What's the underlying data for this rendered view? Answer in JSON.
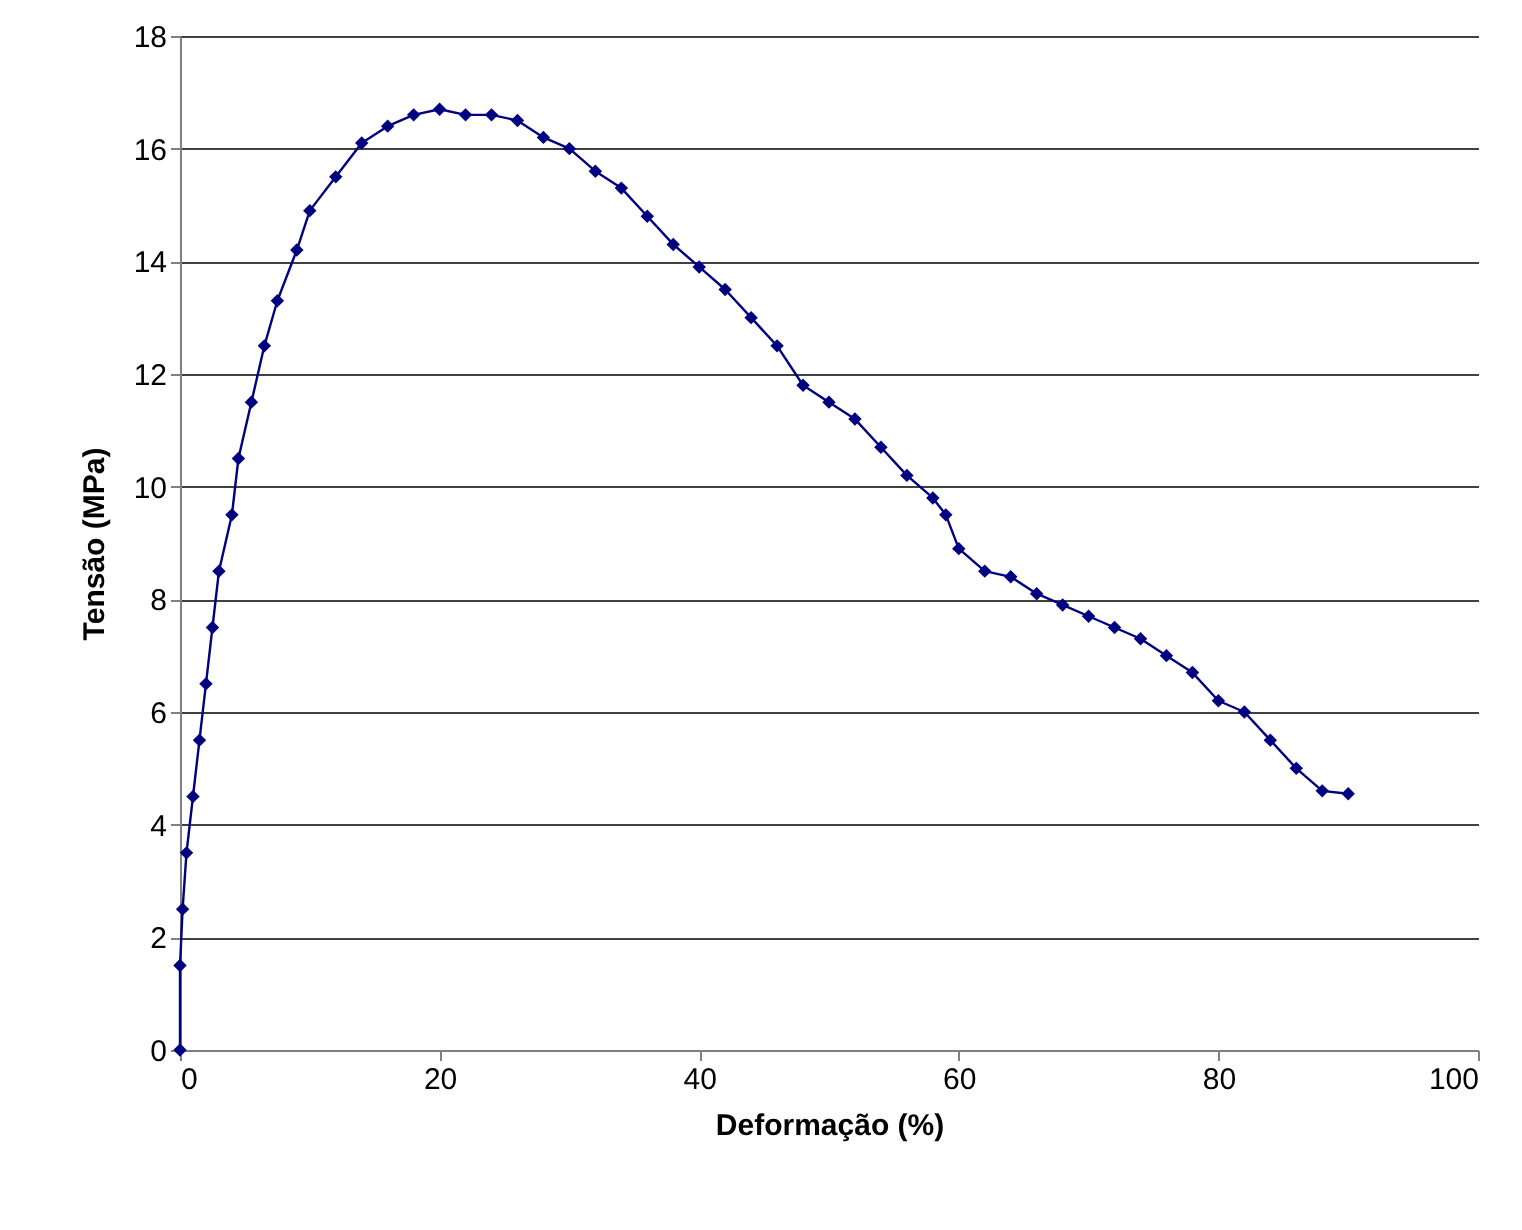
{
  "chart_data": {
    "type": "line",
    "xlabel": "Deformação (%)",
    "ylabel": "Tensão (MPa)",
    "xlim": [
      0,
      100
    ],
    "xticks": [
      0,
      20,
      40,
      60,
      80,
      100
    ],
    "ylim": [
      0,
      18
    ],
    "yticks": [
      0,
      2,
      4,
      6,
      8,
      10,
      12,
      14,
      16,
      18
    ],
    "grid": "y",
    "marker": "diamond",
    "line_style": "solid",
    "series": [
      {
        "color": "#000080",
        "x": [
          0,
          0,
          0.2,
          0.5,
          1,
          1.5,
          2,
          2.5,
          3,
          4,
          4.5,
          5.5,
          6.5,
          7.5,
          9,
          10,
          12,
          14,
          16,
          18,
          20,
          22,
          24,
          26,
          28,
          30,
          32,
          34,
          36,
          38,
          40,
          42,
          44,
          46,
          48,
          50,
          52,
          54,
          56,
          58,
          59,
          60,
          62,
          64,
          66,
          68,
          70,
          72,
          74,
          76,
          78,
          80,
          82,
          84,
          86,
          88,
          90
        ],
        "values": [
          0,
          1.5,
          2.5,
          3.5,
          4.5,
          5.5,
          6.5,
          7.5,
          8.5,
          9.5,
          10.5,
          11.5,
          12.5,
          13.3,
          14.2,
          14.9,
          15.5,
          16.1,
          16.4,
          16.6,
          16.7,
          16.6,
          16.6,
          16.5,
          16.2,
          16.0,
          15.6,
          15.3,
          14.8,
          14.3,
          13.9,
          13.5,
          13.0,
          12.5,
          11.8,
          11.5,
          11.2,
          10.7,
          10.2,
          9.8,
          9.5,
          8.9,
          8.5,
          8.4,
          8.1,
          7.9,
          7.7,
          7.5,
          7.3,
          7.0,
          6.7,
          6.2,
          6.0,
          5.5,
          5.0,
          4.6,
          4.55
        ]
      }
    ]
  }
}
